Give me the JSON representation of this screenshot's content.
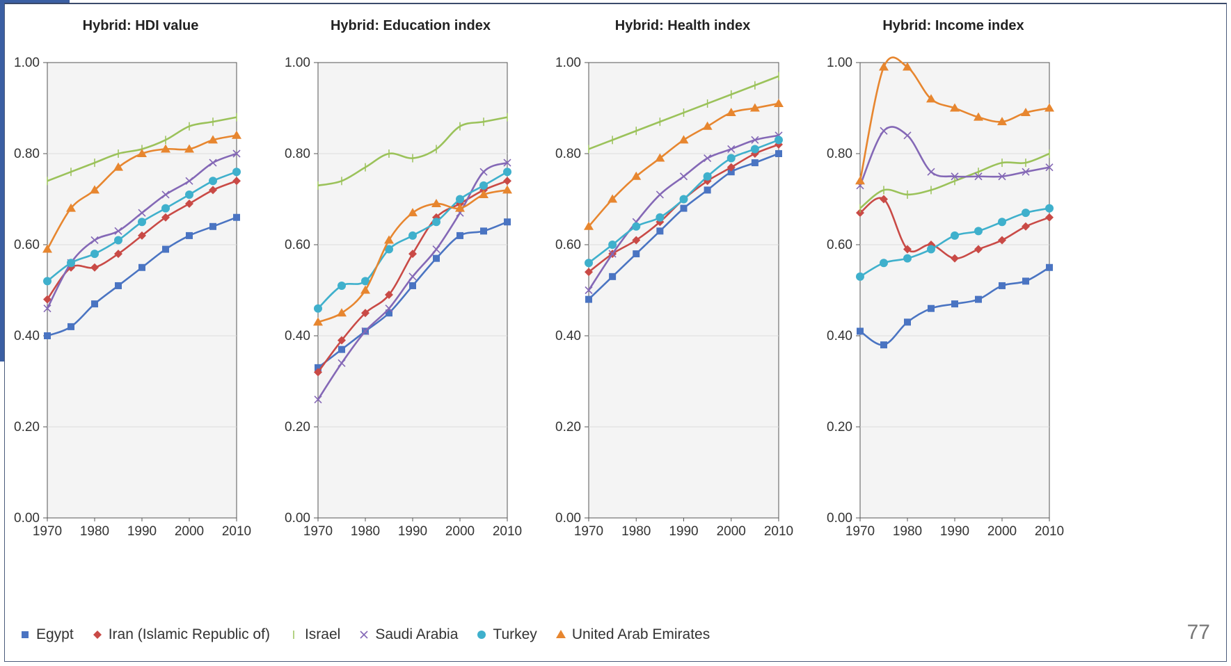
{
  "colors": {
    "Egypt": "#4a74c2",
    "Iran (Islamic Republic of)": "#c94a46",
    "Israel": "#9bc25a",
    "Saudi Arabia": "#8468b6",
    "Turkey": "#3fb0cc",
    "United Arab Emirates": "#e7862f"
  },
  "legend": [
    {
      "name": "Egypt",
      "marker": "square"
    },
    {
      "name": "Iran (Islamic Republic of)",
      "marker": "diamond"
    },
    {
      "name": "Israel",
      "marker": "bar"
    },
    {
      "name": "Saudi Arabia",
      "marker": "cross"
    },
    {
      "name": "Turkey",
      "marker": "circle"
    },
    {
      "name": "United Arab Emirates",
      "marker": "triangle"
    }
  ],
  "page_number": "77",
  "chart_data": [
    {
      "type": "line",
      "title": "Hybrid: HDI value",
      "xlabel": "",
      "ylabel": "",
      "xlim": [
        1970,
        2010
      ],
      "ylim": [
        0,
        1
      ],
      "x_ticks": [
        "1970",
        "1980",
        "1990",
        "2000",
        "2010"
      ],
      "y_ticks": [
        "0.00",
        "0.20",
        "0.40",
        "0.60",
        "0.80",
        "1.00"
      ],
      "x": [
        1970,
        1975,
        1980,
        1985,
        1990,
        1995,
        2000,
        2005,
        2010
      ],
      "series": [
        {
          "name": "Egypt",
          "values": [
            0.4,
            0.42,
            0.47,
            0.51,
            0.55,
            0.59,
            0.62,
            0.64,
            0.66
          ]
        },
        {
          "name": "Iran (Islamic Republic of)",
          "values": [
            0.48,
            0.55,
            0.55,
            0.58,
            0.62,
            0.66,
            0.69,
            0.72,
            0.74
          ]
        },
        {
          "name": "Israel",
          "values": [
            0.74,
            0.76,
            0.78,
            0.8,
            0.81,
            0.83,
            0.86,
            0.87,
            0.88
          ]
        },
        {
          "name": "Saudi Arabia",
          "values": [
            0.46,
            0.56,
            0.61,
            0.63,
            0.67,
            0.71,
            0.74,
            0.78,
            0.8
          ]
        },
        {
          "name": "Turkey",
          "values": [
            0.52,
            0.56,
            0.58,
            0.61,
            0.65,
            0.68,
            0.71,
            0.74,
            0.76
          ]
        },
        {
          "name": "United Arab Emirates",
          "values": [
            0.59,
            0.68,
            0.72,
            0.77,
            0.8,
            0.81,
            0.81,
            0.83,
            0.84
          ]
        }
      ]
    },
    {
      "type": "line",
      "title": "Hybrid: Education index",
      "xlabel": "",
      "ylabel": "",
      "xlim": [
        1970,
        2010
      ],
      "ylim": [
        0,
        1
      ],
      "x_ticks": [
        "1970",
        "1980",
        "1990",
        "2000",
        "2010"
      ],
      "y_ticks": [
        "0.00",
        "0.20",
        "0.40",
        "0.60",
        "0.80",
        "1.00"
      ],
      "x": [
        1970,
        1975,
        1980,
        1985,
        1990,
        1995,
        2000,
        2005,
        2010
      ],
      "series": [
        {
          "name": "Egypt",
          "values": [
            0.33,
            0.37,
            0.41,
            0.45,
            0.51,
            0.57,
            0.62,
            0.63,
            0.65
          ]
        },
        {
          "name": "Iran (Islamic Republic of)",
          "values": [
            0.32,
            0.39,
            0.45,
            0.49,
            0.58,
            0.66,
            0.69,
            0.72,
            0.74
          ]
        },
        {
          "name": "Israel",
          "values": [
            0.73,
            0.74,
            0.77,
            0.8,
            0.79,
            0.81,
            0.86,
            0.87,
            0.88
          ]
        },
        {
          "name": "Saudi Arabia",
          "values": [
            0.26,
            0.34,
            0.41,
            0.46,
            0.53,
            0.59,
            0.67,
            0.76,
            0.78
          ]
        },
        {
          "name": "Turkey",
          "values": [
            0.46,
            0.51,
            0.52,
            0.59,
            0.62,
            0.65,
            0.7,
            0.73,
            0.76
          ]
        },
        {
          "name": "United Arab Emirates",
          "values": [
            0.43,
            0.45,
            0.5,
            0.61,
            0.67,
            0.69,
            0.68,
            0.71,
            0.72
          ]
        }
      ]
    },
    {
      "type": "line",
      "title": "Hybrid: Health index",
      "xlabel": "",
      "ylabel": "",
      "xlim": [
        1970,
        2010
      ],
      "ylim": [
        0,
        1
      ],
      "x_ticks": [
        "1970",
        "1980",
        "1990",
        "2000",
        "2010"
      ],
      "y_ticks": [
        "0.00",
        "0.20",
        "0.40",
        "0.60",
        "0.80",
        "1.00"
      ],
      "x": [
        1970,
        1975,
        1980,
        1985,
        1990,
        1995,
        2000,
        2005,
        2010
      ],
      "series": [
        {
          "name": "Egypt",
          "values": [
            0.48,
            0.53,
            0.58,
            0.63,
            0.68,
            0.72,
            0.76,
            0.78,
            0.8
          ]
        },
        {
          "name": "Iran (Islamic Republic of)",
          "values": [
            0.54,
            0.58,
            0.61,
            0.65,
            0.7,
            0.74,
            0.77,
            0.8,
            0.82
          ]
        },
        {
          "name": "Israel",
          "values": [
            0.81,
            0.83,
            0.85,
            0.87,
            0.89,
            0.91,
            0.93,
            0.95,
            0.97
          ]
        },
        {
          "name": "Saudi Arabia",
          "values": [
            0.5,
            0.58,
            0.65,
            0.71,
            0.75,
            0.79,
            0.81,
            0.83,
            0.84
          ]
        },
        {
          "name": "Turkey",
          "values": [
            0.56,
            0.6,
            0.64,
            0.66,
            0.7,
            0.75,
            0.79,
            0.81,
            0.83
          ]
        },
        {
          "name": "United Arab Emirates",
          "values": [
            0.64,
            0.7,
            0.75,
            0.79,
            0.83,
            0.86,
            0.89,
            0.9,
            0.91
          ]
        }
      ]
    },
    {
      "type": "line",
      "title": "Hybrid: Income index",
      "xlabel": "",
      "ylabel": "",
      "xlim": [
        1970,
        2010
      ],
      "ylim": [
        0,
        1
      ],
      "x_ticks": [
        "1970",
        "1980",
        "1990",
        "2000",
        "2010"
      ],
      "y_ticks": [
        "0.00",
        "0.20",
        "0.40",
        "0.60",
        "0.80",
        "1.00"
      ],
      "x": [
        1970,
        1975,
        1980,
        1985,
        1990,
        1995,
        2000,
        2005,
        2010
      ],
      "series": [
        {
          "name": "Egypt",
          "values": [
            0.41,
            0.38,
            0.43,
            0.46,
            0.47,
            0.48,
            0.51,
            0.52,
            0.55
          ]
        },
        {
          "name": "Iran (Islamic Republic of)",
          "values": [
            0.67,
            0.7,
            0.59,
            0.6,
            0.57,
            0.59,
            0.61,
            0.64,
            0.66
          ]
        },
        {
          "name": "Israel",
          "values": [
            0.68,
            0.72,
            0.71,
            0.72,
            0.74,
            0.76,
            0.78,
            0.78,
            0.8
          ]
        },
        {
          "name": "Saudi Arabia",
          "values": [
            0.73,
            0.85,
            0.84,
            0.76,
            0.75,
            0.75,
            0.75,
            0.76,
            0.77
          ]
        },
        {
          "name": "Turkey",
          "values": [
            0.53,
            0.56,
            0.57,
            0.59,
            0.62,
            0.63,
            0.65,
            0.67,
            0.68
          ]
        },
        {
          "name": "United Arab Emirates",
          "values": [
            0.74,
            0.99,
            0.99,
            0.92,
            0.9,
            0.88,
            0.87,
            0.89,
            0.9
          ]
        }
      ]
    }
  ]
}
